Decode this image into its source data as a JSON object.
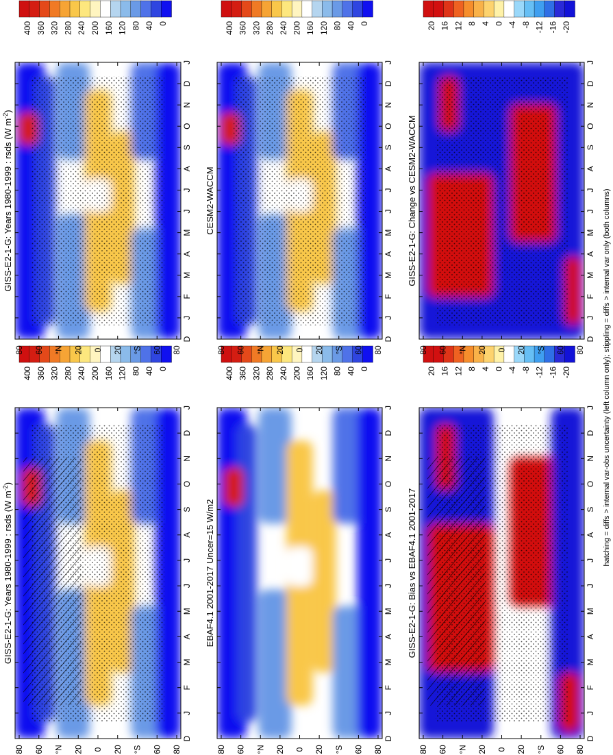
{
  "footnote": "hatching = diffs > internal var-obs uncertainty (left column only); stippling = diffs > internal var only (both columns)",
  "colors": {
    "abs_scale": [
      "#1010f0",
      "#2f45e0",
      "#4f72e8",
      "#6a9ae6",
      "#8bbbea",
      "#b5d5ef",
      "#ffffff",
      "#fff5c0",
      "#fde77e",
      "#f9c74a",
      "#f6a435",
      "#f07a25",
      "#e4491a",
      "#d41d12",
      "#cf1010"
    ],
    "diff_scale": [
      "#1212d8",
      "#2a2ad8",
      "#2f6fe6",
      "#3f9ff0",
      "#66bff5",
      "#9ad8fa",
      "#ffffff",
      "#fff2a8",
      "#fdd36e",
      "#f9b249",
      "#f68e2c",
      "#ef6221",
      "#df3418",
      "#d21010",
      "#d01010"
    ]
  },
  "chart_data": [
    {
      "type": "heatmap",
      "panel": "left-top",
      "title": "GISS-E2-1-G: Years 1980-1999 : rsds (W m",
      "title_sup": "-2",
      "title_end": ")",
      "x": [
        "D",
        "J",
        "F",
        "M",
        "A",
        "M",
        "J",
        "J",
        "A",
        "S",
        "O",
        "N",
        "D",
        "J"
      ],
      "y_ticks": [
        "80",
        "60",
        "°N",
        "20",
        "0",
        "20",
        "°S",
        "60",
        "80"
      ],
      "legend": [
        "400",
        "360",
        "320",
        "280",
        "240",
        "200",
        "160",
        "120",
        "80",
        "40",
        "0"
      ],
      "hatching": true,
      "stippling": true
    },
    {
      "type": "heatmap",
      "panel": "right-top",
      "title": "GISS-E2-1-G: Years 1980-1999 : rsds (W m",
      "title_sup": "-2",
      "title_end": ")",
      "x": [
        "D",
        "J",
        "F",
        "M",
        "A",
        "M",
        "J",
        "J",
        "A",
        "S",
        "O",
        "N",
        "D",
        "J"
      ],
      "y_ticks": [
        "80",
        "60",
        "°N",
        "20",
        "0",
        "20",
        "°S",
        "60",
        "80"
      ],
      "legend": [
        "400",
        "360",
        "320",
        "280",
        "240",
        "200",
        "160",
        "120",
        "80",
        "40",
        "0"
      ],
      "hatching": false,
      "stippling": true
    },
    {
      "type": "heatmap",
      "panel": "left-middle",
      "title": "EBAF4.1 2001-2017 Uncer=15 W/m2",
      "x": [
        "D",
        "J",
        "F",
        "M",
        "A",
        "M",
        "J",
        "J",
        "A",
        "S",
        "O",
        "N",
        "D",
        "J"
      ],
      "y_ticks": [
        "80",
        "60",
        "°N",
        "20",
        "0",
        "20",
        "°S",
        "60",
        "80"
      ],
      "legend": [
        "400",
        "360",
        "320",
        "280",
        "240",
        "200",
        "160",
        "120",
        "80",
        "40",
        "0"
      ],
      "hatching": false,
      "stippling": false
    },
    {
      "type": "heatmap",
      "panel": "right-middle",
      "title": "CESM2-WACCM",
      "x": [
        "D",
        "J",
        "F",
        "M",
        "A",
        "M",
        "J",
        "J",
        "A",
        "S",
        "O",
        "N",
        "D",
        "J"
      ],
      "y_ticks": [
        "80",
        "60",
        "°N",
        "20",
        "0",
        "20",
        "°S",
        "60",
        "80"
      ],
      "legend": [
        "400",
        "360",
        "320",
        "280",
        "240",
        "200",
        "160",
        "120",
        "80",
        "40",
        "0"
      ],
      "hatching": false,
      "stippling": true
    },
    {
      "type": "heatmap",
      "panel": "left-bottom",
      "title": "GISS-E2-1-G: Bias vs EBAF4.1 2001-2017",
      "x": [
        "D",
        "J",
        "F",
        "M",
        "A",
        "M",
        "J",
        "J",
        "A",
        "S",
        "O",
        "N",
        "D",
        "J"
      ],
      "y_ticks": [
        "80",
        "60",
        "°N",
        "20",
        "0",
        "20",
        "°S",
        "60",
        "80"
      ],
      "legend": [
        "20",
        "16",
        "12",
        "8",
        "4",
        "0",
        "-4",
        "-8",
        "-12",
        "-16",
        "-20"
      ],
      "hatching": true,
      "stippling": true
    },
    {
      "type": "heatmap",
      "panel": "right-bottom",
      "title": "GISS-E2-1-G: Change vs CESM2-WACCM",
      "x": [
        "D",
        "J",
        "F",
        "M",
        "A",
        "M",
        "J",
        "J",
        "A",
        "S",
        "O",
        "N",
        "D",
        "J"
      ],
      "y_ticks": [
        "80",
        "60",
        "°N",
        "20",
        "0",
        "20",
        "°S",
        "60",
        "80"
      ],
      "legend": [
        "20",
        "16",
        "12",
        "8",
        "4",
        "0",
        "-4",
        "-8",
        "-12",
        "-16",
        "-20"
      ],
      "hatching": false,
      "stippling": true
    }
  ]
}
